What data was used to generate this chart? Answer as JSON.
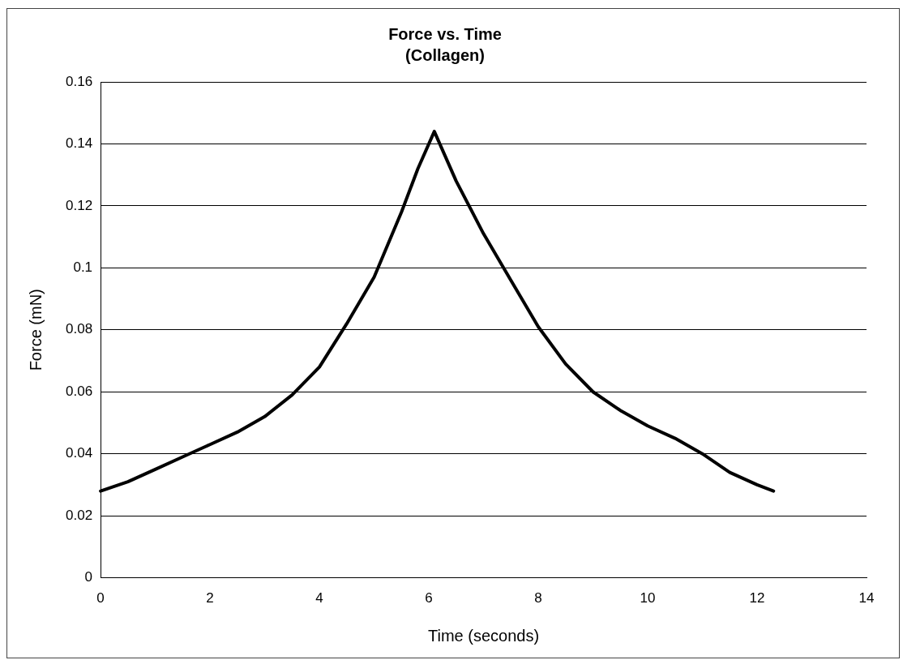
{
  "chart_data": {
    "type": "line",
    "title": "Force vs. Time",
    "subtitle": "(Collagen)",
    "xlabel": "Time (seconds)",
    "ylabel": "Force (mN)",
    "x": [
      0,
      0.5,
      1,
      1.5,
      2,
      2.5,
      3,
      3.5,
      4,
      4.5,
      5,
      5.5,
      5.8,
      6.1,
      6.5,
      7,
      7.5,
      8,
      8.5,
      9,
      9.5,
      10,
      10.5,
      11,
      11.5,
      12,
      12.3
    ],
    "series": [
      {
        "color": "#000000",
        "values": [
          0.028,
          0.031,
          0.035,
          0.039,
          0.043,
          0.047,
          0.052,
          0.059,
          0.068,
          0.082,
          0.097,
          0.118,
          0.132,
          0.144,
          0.128,
          0.111,
          0.096,
          0.081,
          0.069,
          0.06,
          0.054,
          0.049,
          0.045,
          0.04,
          0.034,
          0.03,
          0.028
        ]
      }
    ],
    "xlim": [
      0,
      14
    ],
    "xticks": [
      0,
      2,
      4,
      6,
      8,
      10,
      12,
      14
    ],
    "ylim": [
      0,
      0.16
    ],
    "yticks": [
      0,
      0.02,
      0.04,
      0.06,
      0.08,
      {
        "value": 0.1,
        "label": "0.1"
      },
      0.12,
      0.14,
      0.16
    ],
    "grid": "y",
    "legend": false,
    "marker": "none",
    "line_style": "solid"
  }
}
